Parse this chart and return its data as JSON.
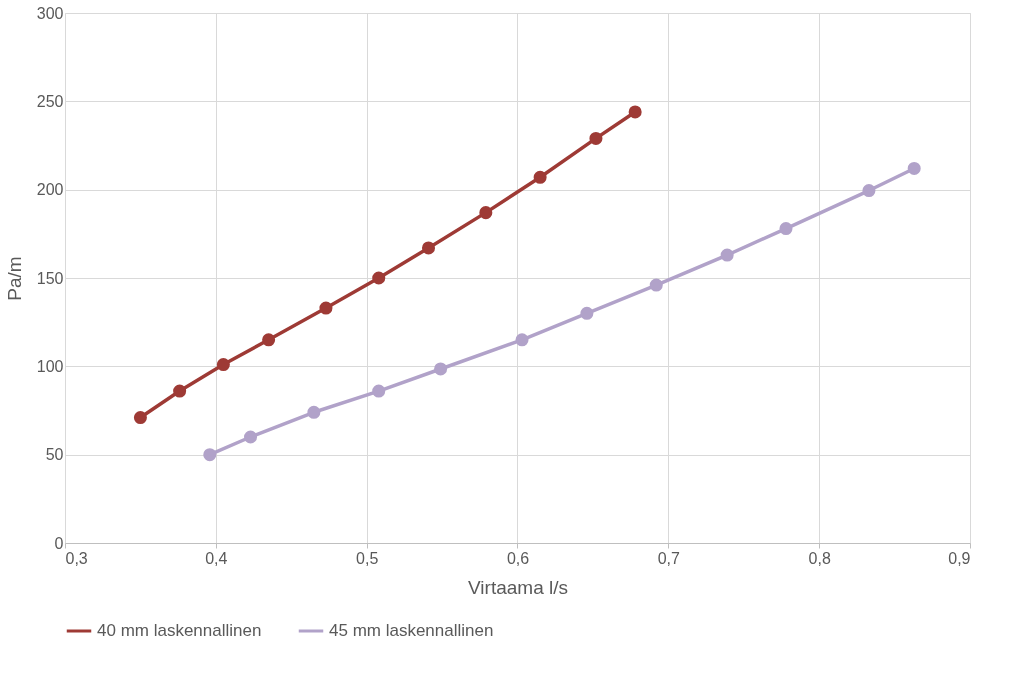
{
  "chart_data": {
    "type": "line",
    "xlabel": "Virtaama l/s",
    "ylabel": "Pa/m",
    "xlim": [
      0.3,
      0.9
    ],
    "xticks": [
      {
        "value": 0.3,
        "label": "0,3"
      },
      {
        "value": 0.4,
        "label": "0,4"
      },
      {
        "value": 0.5,
        "label": "0,5"
      },
      {
        "value": 0.6,
        "label": "0,6"
      },
      {
        "value": 0.7,
        "label": "0,7"
      },
      {
        "value": 0.8,
        "label": "0,8"
      },
      {
        "value": 0.9,
        "label": "0,9"
      }
    ],
    "ylim": [
      0,
      300
    ],
    "yticks": [
      0,
      50,
      100,
      150,
      200,
      250,
      300
    ],
    "grid": true,
    "legend": "bottom",
    "marker": "circle",
    "line_style": "solid",
    "series": [
      {
        "name": "40 mm laskennallinen",
        "color": "#9e3a35",
        "x": [
          0.35,
          0.376,
          0.405,
          0.435,
          0.473,
          0.508,
          0.541,
          0.579,
          0.615,
          0.652,
          0.678
        ],
        "values": [
          71,
          86,
          101,
          115,
          133,
          150,
          167,
          187,
          207,
          229,
          244
        ]
      },
      {
        "name": "45 mm laskennallinen",
        "color": "#b1a2c9",
        "x": [
          0.396,
          0.423,
          0.465,
          0.508,
          0.549,
          0.603,
          0.646,
          0.692,
          0.739,
          0.778,
          0.833,
          0.863
        ],
        "values": [
          50,
          60,
          74,
          86,
          98.5,
          115,
          130,
          146,
          163,
          178,
          199.5,
          212
        ]
      }
    ]
  }
}
